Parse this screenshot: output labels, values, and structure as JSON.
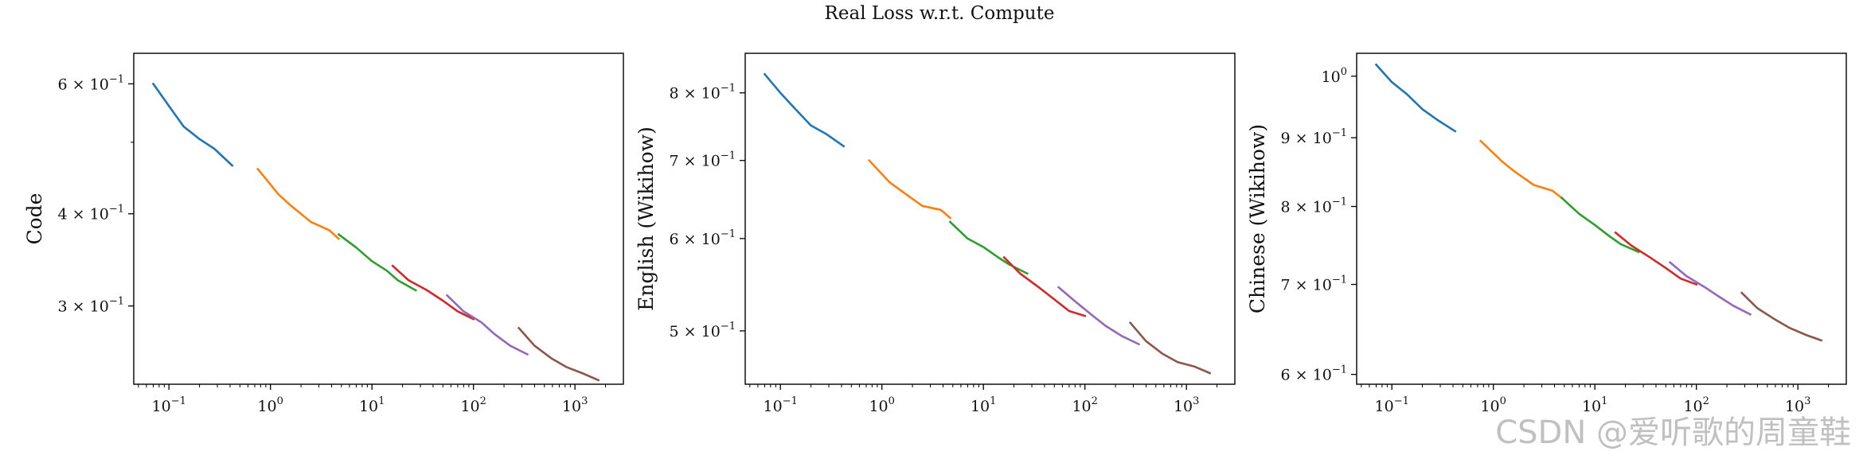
{
  "suptitle": "Real Loss w.r.t. Compute",
  "watermark": "CSDN @爱听歌的周童鞋",
  "colors": [
    "#1f77b4",
    "#ff7f0e",
    "#2ca02c",
    "#d62728",
    "#9467bd",
    "#8c564b"
  ],
  "chart_data": [
    {
      "type": "line",
      "title": "",
      "xlabel": "",
      "ylabel": "Code",
      "xscale": "log",
      "yscale": "log",
      "xlim": [
        0.045,
        3000
      ],
      "ylim": [
        0.235,
        0.66
      ],
      "grid": false,
      "xticks": [
        0.1,
        1,
        10,
        100,
        1000
      ],
      "xtick_labels": [
        {
          "base": "10",
          "exp": "−1"
        },
        {
          "base": "10",
          "exp": "0"
        },
        {
          "base": "10",
          "exp": "1"
        },
        {
          "base": "10",
          "exp": "2"
        },
        {
          "base": "10",
          "exp": "3"
        }
      ],
      "yticks": [
        0.6,
        0.4,
        0.3
      ],
      "ytick_labels": [
        {
          "mant": "6",
          "base": "10",
          "exp": "−1"
        },
        {
          "mant": "4",
          "base": "10",
          "exp": "−1"
        },
        {
          "mant": "3",
          "base": "10",
          "exp": "−1"
        }
      ],
      "series": [
        {
          "x": [
            0.07,
            0.1,
            0.14,
            0.2,
            0.28,
            0.42
          ],
          "y": [
            0.6,
            0.56,
            0.525,
            0.505,
            0.49,
            0.465
          ]
        },
        {
          "x": [
            0.75,
            1.2,
            1.6,
            2.5,
            3.8,
            4.7
          ],
          "y": [
            0.46,
            0.425,
            0.41,
            0.39,
            0.38,
            0.37
          ]
        },
        {
          "x": [
            4.7,
            7,
            10,
            14,
            18,
            27
          ],
          "y": [
            0.375,
            0.36,
            0.345,
            0.335,
            0.325,
            0.315
          ]
        },
        {
          "x": [
            16,
            23,
            35,
            50,
            70,
            100
          ],
          "y": [
            0.34,
            0.325,
            0.315,
            0.305,
            0.295,
            0.288
          ]
        },
        {
          "x": [
            55,
            80,
            120,
            160,
            230,
            340
          ],
          "y": [
            0.31,
            0.295,
            0.285,
            0.275,
            0.265,
            0.258
          ]
        },
        {
          "x": [
            280,
            400,
            580,
            820,
            1200,
            1700
          ],
          "y": [
            0.28,
            0.265,
            0.255,
            0.248,
            0.243,
            0.238
          ]
        }
      ]
    },
    {
      "type": "line",
      "title": "",
      "xlabel": "",
      "ylabel": "English (Wikihow)",
      "xscale": "log",
      "yscale": "log",
      "xlim": [
        0.045,
        3000
      ],
      "ylim": [
        0.45,
        0.865
      ],
      "grid": false,
      "xticks": [
        0.1,
        1,
        10,
        100,
        1000
      ],
      "xtick_labels": [
        {
          "base": "10",
          "exp": "−1"
        },
        {
          "base": "10",
          "exp": "0"
        },
        {
          "base": "10",
          "exp": "1"
        },
        {
          "base": "10",
          "exp": "2"
        },
        {
          "base": "10",
          "exp": "3"
        }
      ],
      "yticks": [
        0.8,
        0.7,
        0.6,
        0.5
      ],
      "ytick_labels": [
        {
          "mant": "8",
          "base": "10",
          "exp": "−1"
        },
        {
          "mant": "7",
          "base": "10",
          "exp": "−1"
        },
        {
          "mant": "6",
          "base": "10",
          "exp": "−1"
        },
        {
          "mant": "5",
          "base": "10",
          "exp": "−1"
        }
      ],
      "series": [
        {
          "x": [
            0.07,
            0.1,
            0.14,
            0.2,
            0.28,
            0.42
          ],
          "y": [
            0.83,
            0.8,
            0.775,
            0.75,
            0.738,
            0.72
          ]
        },
        {
          "x": [
            0.75,
            1.2,
            1.6,
            2.5,
            3.8,
            4.7
          ],
          "y": [
            0.7,
            0.67,
            0.658,
            0.64,
            0.635,
            0.625
          ]
        },
        {
          "x": [
            4.7,
            7,
            10,
            14,
            18,
            27
          ],
          "y": [
            0.62,
            0.6,
            0.59,
            0.578,
            0.57,
            0.56
          ]
        },
        {
          "x": [
            16,
            23,
            35,
            50,
            70,
            100
          ],
          "y": [
            0.578,
            0.56,
            0.545,
            0.532,
            0.52,
            0.515
          ]
        },
        {
          "x": [
            55,
            80,
            120,
            160,
            230,
            340
          ],
          "y": [
            0.545,
            0.53,
            0.515,
            0.505,
            0.495,
            0.487
          ]
        },
        {
          "x": [
            280,
            400,
            580,
            820,
            1200,
            1700
          ],
          "y": [
            0.508,
            0.49,
            0.478,
            0.47,
            0.466,
            0.46
          ]
        }
      ]
    },
    {
      "type": "line",
      "title": "",
      "xlabel": "",
      "ylabel": "Chinese (Wikihow)",
      "xscale": "log",
      "yscale": "log",
      "xlim": [
        0.045,
        3000
      ],
      "ylim": [
        0.59,
        1.04
      ],
      "grid": false,
      "xticks": [
        0.1,
        1,
        10,
        100,
        1000
      ],
      "xtick_labels": [
        {
          "base": "10",
          "exp": "−1"
        },
        {
          "base": "10",
          "exp": "0"
        },
        {
          "base": "10",
          "exp": "1"
        },
        {
          "base": "10",
          "exp": "2"
        },
        {
          "base": "10",
          "exp": "3"
        }
      ],
      "yticks": [
        1.0,
        0.9,
        0.8,
        0.7,
        0.6
      ],
      "ytick_labels": [
        {
          "mant": "",
          "base": "10",
          "exp": "0"
        },
        {
          "mant": "9",
          "base": "10",
          "exp": "−1"
        },
        {
          "mant": "8",
          "base": "10",
          "exp": "−1"
        },
        {
          "mant": "7",
          "base": "10",
          "exp": "−1"
        },
        {
          "mant": "6",
          "base": "10",
          "exp": "−1"
        }
      ],
      "series": [
        {
          "x": [
            0.07,
            0.1,
            0.14,
            0.2,
            0.28,
            0.42
          ],
          "y": [
            1.02,
            0.99,
            0.97,
            0.945,
            0.928,
            0.91
          ]
        },
        {
          "x": [
            0.75,
            1.2,
            1.6,
            2.5,
            3.8,
            4.7
          ],
          "y": [
            0.895,
            0.865,
            0.85,
            0.83,
            0.822,
            0.812
          ]
        },
        {
          "x": [
            4.7,
            7,
            10,
            14,
            18,
            27
          ],
          "y": [
            0.812,
            0.79,
            0.775,
            0.76,
            0.75,
            0.74
          ]
        },
        {
          "x": [
            16,
            23,
            35,
            50,
            70,
            100
          ],
          "y": [
            0.765,
            0.748,
            0.733,
            0.72,
            0.707,
            0.7
          ]
        },
        {
          "x": [
            55,
            80,
            120,
            160,
            230,
            340
          ],
          "y": [
            0.727,
            0.71,
            0.697,
            0.687,
            0.675,
            0.665
          ]
        },
        {
          "x": [
            280,
            400,
            580,
            820,
            1200,
            1700
          ],
          "y": [
            0.69,
            0.672,
            0.66,
            0.65,
            0.642,
            0.636
          ]
        }
      ]
    }
  ]
}
